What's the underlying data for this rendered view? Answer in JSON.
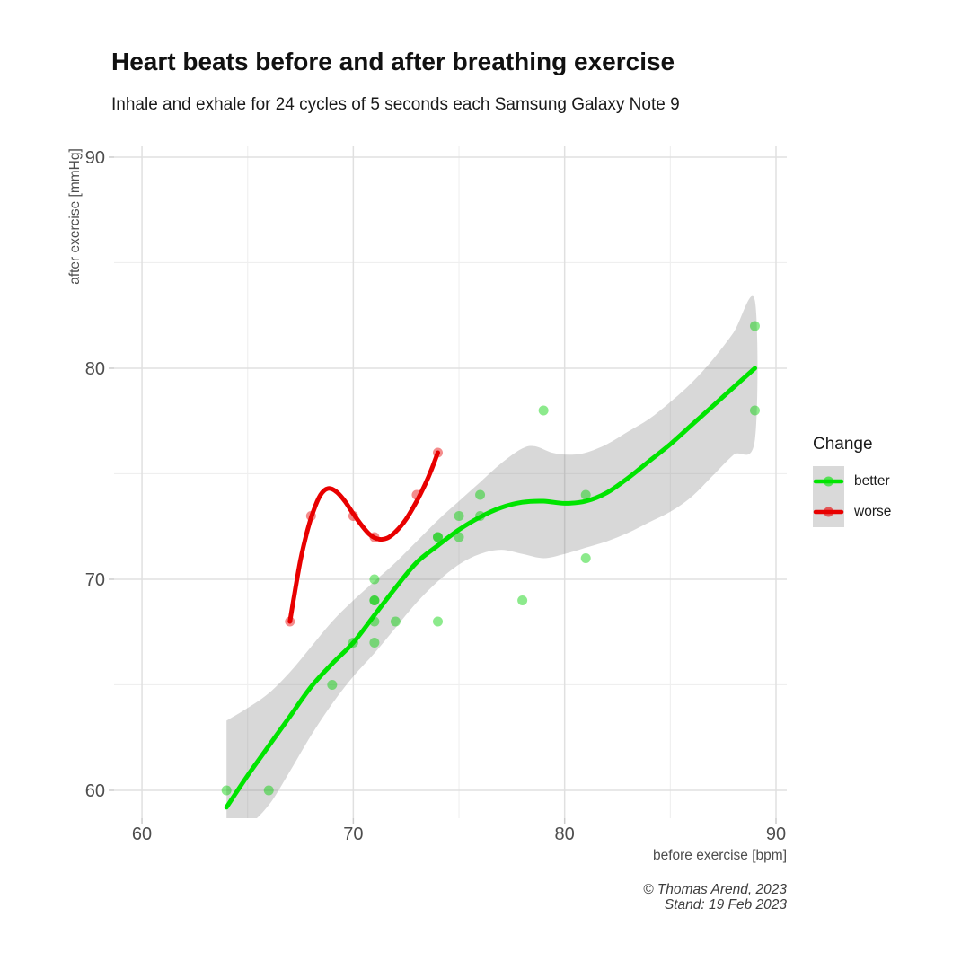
{
  "header": {
    "title": "Heart beats before and after breathing exercise",
    "subtitle": "Inhale and exhale for 24 cycles of 5 seconds each Samsung Galaxy Note 9"
  },
  "axes": {
    "x_label": "before exercise [bpm]",
    "y_label": "after exercise [mmHg]",
    "x_ticks": [
      60,
      70,
      80,
      90
    ],
    "y_ticks": [
      60,
      70,
      80,
      90
    ],
    "x_minor_ticks": [
      65,
      75,
      85
    ],
    "y_minor_ticks": [
      65,
      75,
      85
    ]
  },
  "legend": {
    "title": "Change",
    "items": [
      {
        "label": "better",
        "color": "#00e400"
      },
      {
        "label": "worse",
        "color": "#e80000"
      }
    ]
  },
  "caption": {
    "line1": "© Thomas Arend, 2023",
    "line2": "Stand: 19 Feb 2023"
  },
  "colors": {
    "better_line": "#00e400",
    "worse_line": "#e80000",
    "better_point": "#00d000",
    "worse_point": "#e60000",
    "confidence_band": "#808080",
    "grid_major": "#e0e0e0",
    "grid_minor": "#efefef",
    "tick_mark": "#cccccc",
    "tick_label": "#4d4d4d",
    "legend_key_bg": "#d9d9d9"
  },
  "chart_data": {
    "type": "scatter",
    "title": "Heart beats before and after breathing exercise",
    "subtitle": "Inhale and exhale for 24 cycles of 5 seconds each Samsung Galaxy Note 9",
    "xlabel": "before exercise [bpm]",
    "ylabel": "after exercise [mmHg]",
    "xlim": [
      58.7,
      90.5
    ],
    "ylim": [
      58.7,
      90.5
    ],
    "grid": true,
    "legend_position": "right",
    "legend_title": "Change",
    "series": [
      {
        "name": "better",
        "points": [
          [
            64,
            60
          ],
          [
            66,
            60
          ],
          [
            69,
            65
          ],
          [
            70,
            67
          ],
          [
            71,
            67
          ],
          [
            71,
            68
          ],
          [
            72,
            68
          ],
          [
            74,
            68
          ],
          [
            71,
            69
          ],
          [
            71,
            69
          ],
          [
            71,
            70
          ],
          [
            78,
            69
          ],
          [
            81,
            71
          ],
          [
            74,
            72
          ],
          [
            74,
            72
          ],
          [
            75,
            72
          ],
          [
            75,
            73
          ],
          [
            76,
            73
          ],
          [
            76,
            74
          ],
          [
            81,
            74
          ],
          [
            79,
            78
          ],
          [
            89,
            78
          ],
          [
            89,
            82
          ]
        ],
        "smooth_line": [
          [
            64,
            59.2
          ],
          [
            65,
            60.7
          ],
          [
            66,
            62.1
          ],
          [
            67,
            63.5
          ],
          [
            68,
            64.9
          ],
          [
            69,
            66.0
          ],
          [
            70,
            67.0
          ],
          [
            71,
            68.3
          ],
          [
            72,
            69.6
          ],
          [
            73,
            70.8
          ],
          [
            74,
            71.6
          ],
          [
            75,
            72.35
          ],
          [
            76,
            72.95
          ],
          [
            77,
            73.4
          ],
          [
            78,
            73.65
          ],
          [
            79,
            73.7
          ],
          [
            80,
            73.6
          ],
          [
            81,
            73.7
          ],
          [
            82,
            74.1
          ],
          [
            83,
            74.8
          ],
          [
            84,
            75.6
          ],
          [
            85,
            76.4
          ],
          [
            86,
            77.3
          ],
          [
            87,
            78.2
          ],
          [
            88,
            79.1
          ],
          [
            89,
            80.0
          ]
        ],
        "ci_upper": [
          [
            64,
            63.3
          ],
          [
            65,
            63.9
          ],
          [
            66,
            64.6
          ],
          [
            67,
            65.6
          ],
          [
            68,
            66.8
          ],
          [
            69,
            68.0
          ],
          [
            70,
            69.0
          ],
          [
            71,
            69.9
          ],
          [
            72,
            70.8
          ],
          [
            73,
            71.8
          ],
          [
            74,
            72.8
          ],
          [
            75,
            73.7
          ],
          [
            76,
            74.6
          ],
          [
            77,
            75.5
          ],
          [
            78,
            76.2
          ],
          [
            78.6,
            76.3
          ],
          [
            79.4,
            76.0
          ],
          [
            80.2,
            75.9
          ],
          [
            81,
            76.0
          ],
          [
            82,
            76.4
          ],
          [
            83,
            77.0
          ],
          [
            84,
            77.6
          ],
          [
            85,
            78.4
          ],
          [
            86,
            79.3
          ],
          [
            87,
            80.4
          ],
          [
            88,
            81.7
          ],
          [
            89,
            83.2
          ]
        ],
        "ci_lower": [
          [
            64,
            58.6
          ],
          [
            65,
            58.4
          ],
          [
            66,
            59.3
          ],
          [
            67,
            60.9
          ],
          [
            68,
            62.6
          ],
          [
            69,
            64.1
          ],
          [
            70,
            65.4
          ],
          [
            71,
            66.5
          ],
          [
            72,
            67.7
          ],
          [
            73,
            68.9
          ],
          [
            74,
            69.9
          ],
          [
            75,
            70.7
          ],
          [
            76,
            71.2
          ],
          [
            77,
            71.4
          ],
          [
            78,
            71.2
          ],
          [
            79,
            71.0
          ],
          [
            80,
            71.2
          ],
          [
            81,
            71.5
          ],
          [
            82,
            71.8
          ],
          [
            83,
            72.2
          ],
          [
            84,
            72.7
          ],
          [
            85,
            73.2
          ],
          [
            86,
            73.9
          ],
          [
            87,
            74.9
          ],
          [
            88,
            75.9
          ],
          [
            89,
            76.6
          ]
        ]
      },
      {
        "name": "worse",
        "points": [
          [
            67,
            68
          ],
          [
            68,
            73
          ],
          [
            70,
            73
          ],
          [
            71,
            72
          ],
          [
            73,
            74
          ],
          [
            74,
            76
          ]
        ],
        "smooth_line": [
          [
            67,
            68.0
          ],
          [
            67.2,
            69.2
          ],
          [
            67.5,
            70.9
          ],
          [
            67.8,
            72.2
          ],
          [
            68.1,
            73.2
          ],
          [
            68.45,
            74.0
          ],
          [
            68.8,
            74.3
          ],
          [
            69.2,
            74.15
          ],
          [
            69.6,
            73.7
          ],
          [
            70,
            73.1
          ],
          [
            70.4,
            72.55
          ],
          [
            70.8,
            72.1
          ],
          [
            71.2,
            71.9
          ],
          [
            71.6,
            71.95
          ],
          [
            72,
            72.25
          ],
          [
            72.5,
            72.85
          ],
          [
            73,
            73.7
          ],
          [
            73.4,
            74.5
          ],
          [
            73.7,
            75.2
          ],
          [
            74,
            76.0
          ]
        ]
      }
    ]
  }
}
